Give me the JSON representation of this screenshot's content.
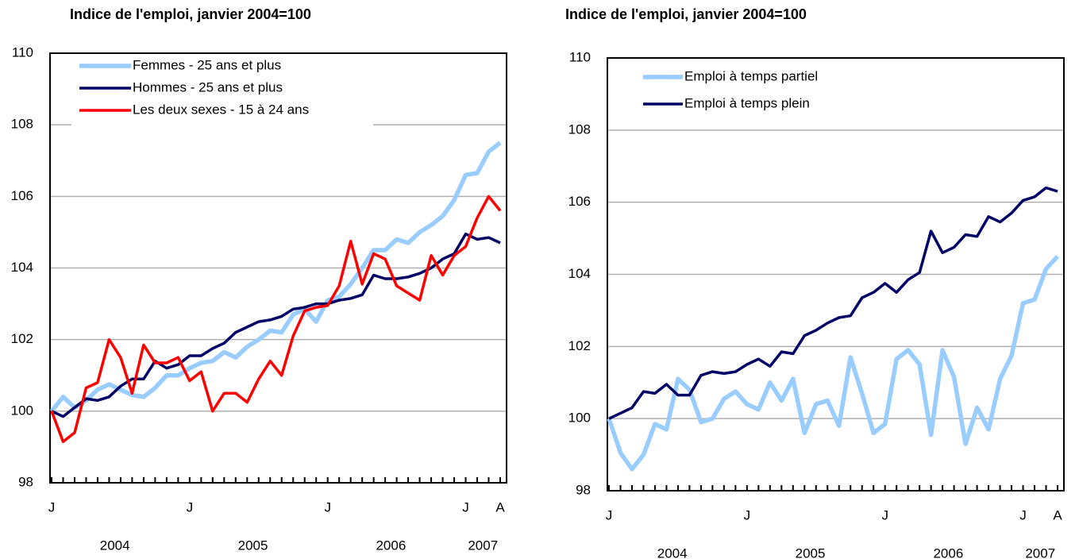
{
  "chart_data": [
    {
      "type": "line",
      "title": "Indice de l'emploi, janvier 2004=100",
      "categories": [
        "J",
        null,
        null,
        null,
        null,
        null,
        null,
        null,
        null,
        null,
        null,
        null,
        "J",
        null,
        null,
        null,
        null,
        null,
        null,
        null,
        null,
        null,
        null,
        null,
        "J",
        null,
        null,
        null,
        null,
        null,
        null,
        null,
        null,
        null,
        null,
        null,
        "J",
        null,
        null,
        "A"
      ],
      "year_labels": [
        "2004",
        "2005",
        "2006",
        "2007"
      ],
      "ylim": [
        98,
        110
      ],
      "yticks": [
        98,
        100,
        102,
        104,
        106,
        108,
        110
      ],
      "grid": true,
      "legend": "upper left",
      "series": [
        {
          "name": "Femmes - 25 ans et plus",
          "color": "#99ccff",
          "values": [
            100,
            100.4,
            100.1,
            100.3,
            100.6,
            100.75,
            100.6,
            100.45,
            100.4,
            100.65,
            101.0,
            101.0,
            101.2,
            101.35,
            101.4,
            101.65,
            101.5,
            101.8,
            102.0,
            102.25,
            102.2,
            102.7,
            102.85,
            102.5,
            103.1,
            103.2,
            103.55,
            104.0,
            104.5,
            104.5,
            104.8,
            104.7,
            105.0,
            105.2,
            105.45,
            105.9,
            106.6,
            106.65,
            107.25,
            107.5
          ]
        },
        {
          "name": "Hommes - 25 ans et plus",
          "color": "#000066",
          "values": [
            100,
            99.85,
            100.1,
            100.35,
            100.3,
            100.4,
            100.7,
            100.9,
            100.9,
            101.4,
            101.2,
            101.3,
            101.55,
            101.55,
            101.75,
            101.9,
            102.2,
            102.35,
            102.5,
            102.55,
            102.65,
            102.85,
            102.9,
            103.0,
            103.0,
            103.1,
            103.15,
            103.25,
            103.8,
            103.7,
            103.7,
            103.75,
            103.85,
            104.0,
            104.25,
            104.4,
            104.95,
            104.8,
            104.85,
            104.7
          ]
        },
        {
          "name": "Les deux sexes - 15 à 24 ans",
          "color": "#ff0000",
          "values": [
            100,
            99.15,
            99.4,
            100.65,
            100.8,
            102.0,
            101.5,
            100.5,
            101.85,
            101.35,
            101.35,
            101.5,
            100.85,
            101.1,
            100.0,
            100.5,
            100.5,
            100.25,
            100.9,
            101.4,
            101.0,
            102.1,
            102.8,
            102.9,
            102.95,
            103.5,
            104.75,
            103.55,
            104.4,
            104.25,
            103.5,
            103.3,
            103.1,
            104.35,
            103.8,
            104.35,
            104.6,
            105.4,
            106.0,
            105.6
          ]
        }
      ]
    },
    {
      "type": "line",
      "title": "Indice de l'emploi, janvier 2004=100",
      "categories": [
        "J",
        null,
        null,
        null,
        null,
        null,
        null,
        null,
        null,
        null,
        null,
        null,
        "J",
        null,
        null,
        null,
        null,
        null,
        null,
        null,
        null,
        null,
        null,
        null,
        "J",
        null,
        null,
        null,
        null,
        null,
        null,
        null,
        null,
        null,
        null,
        null,
        "J",
        null,
        null,
        "A"
      ],
      "year_labels": [
        "2004",
        "2005",
        "2006",
        "2007"
      ],
      "ylim": [
        98,
        110
      ],
      "yticks": [
        98,
        100,
        102,
        104,
        106,
        108,
        110
      ],
      "grid": true,
      "legend": "upper left",
      "series": [
        {
          "name": "Emploi à temps partiel",
          "color": "#99ccff",
          "values": [
            100,
            99.05,
            98.6,
            99.0,
            99.85,
            99.7,
            101.1,
            100.8,
            99.9,
            100.0,
            100.55,
            100.75,
            100.4,
            100.25,
            101.0,
            100.5,
            101.1,
            99.6,
            100.4,
            100.5,
            99.8,
            101.7,
            100.7,
            99.6,
            99.85,
            101.65,
            101.9,
            101.5,
            99.55,
            101.9,
            101.15,
            99.3,
            100.3,
            99.7,
            101.1,
            101.75,
            103.2,
            103.3,
            104.15,
            104.5
          ]
        },
        {
          "name": "Emploi à temps plein",
          "color": "#000066",
          "values": [
            100,
            100.15,
            100.3,
            100.75,
            100.7,
            100.95,
            100.65,
            100.65,
            101.2,
            101.3,
            101.25,
            101.3,
            101.5,
            101.65,
            101.45,
            101.85,
            101.8,
            102.3,
            102.45,
            102.65,
            102.8,
            102.85,
            103.35,
            103.5,
            103.75,
            103.5,
            103.85,
            104.05,
            105.2,
            104.6,
            104.75,
            105.1,
            105.05,
            105.6,
            105.45,
            105.7,
            106.05,
            106.15,
            106.4,
            106.3
          ]
        }
      ]
    }
  ]
}
